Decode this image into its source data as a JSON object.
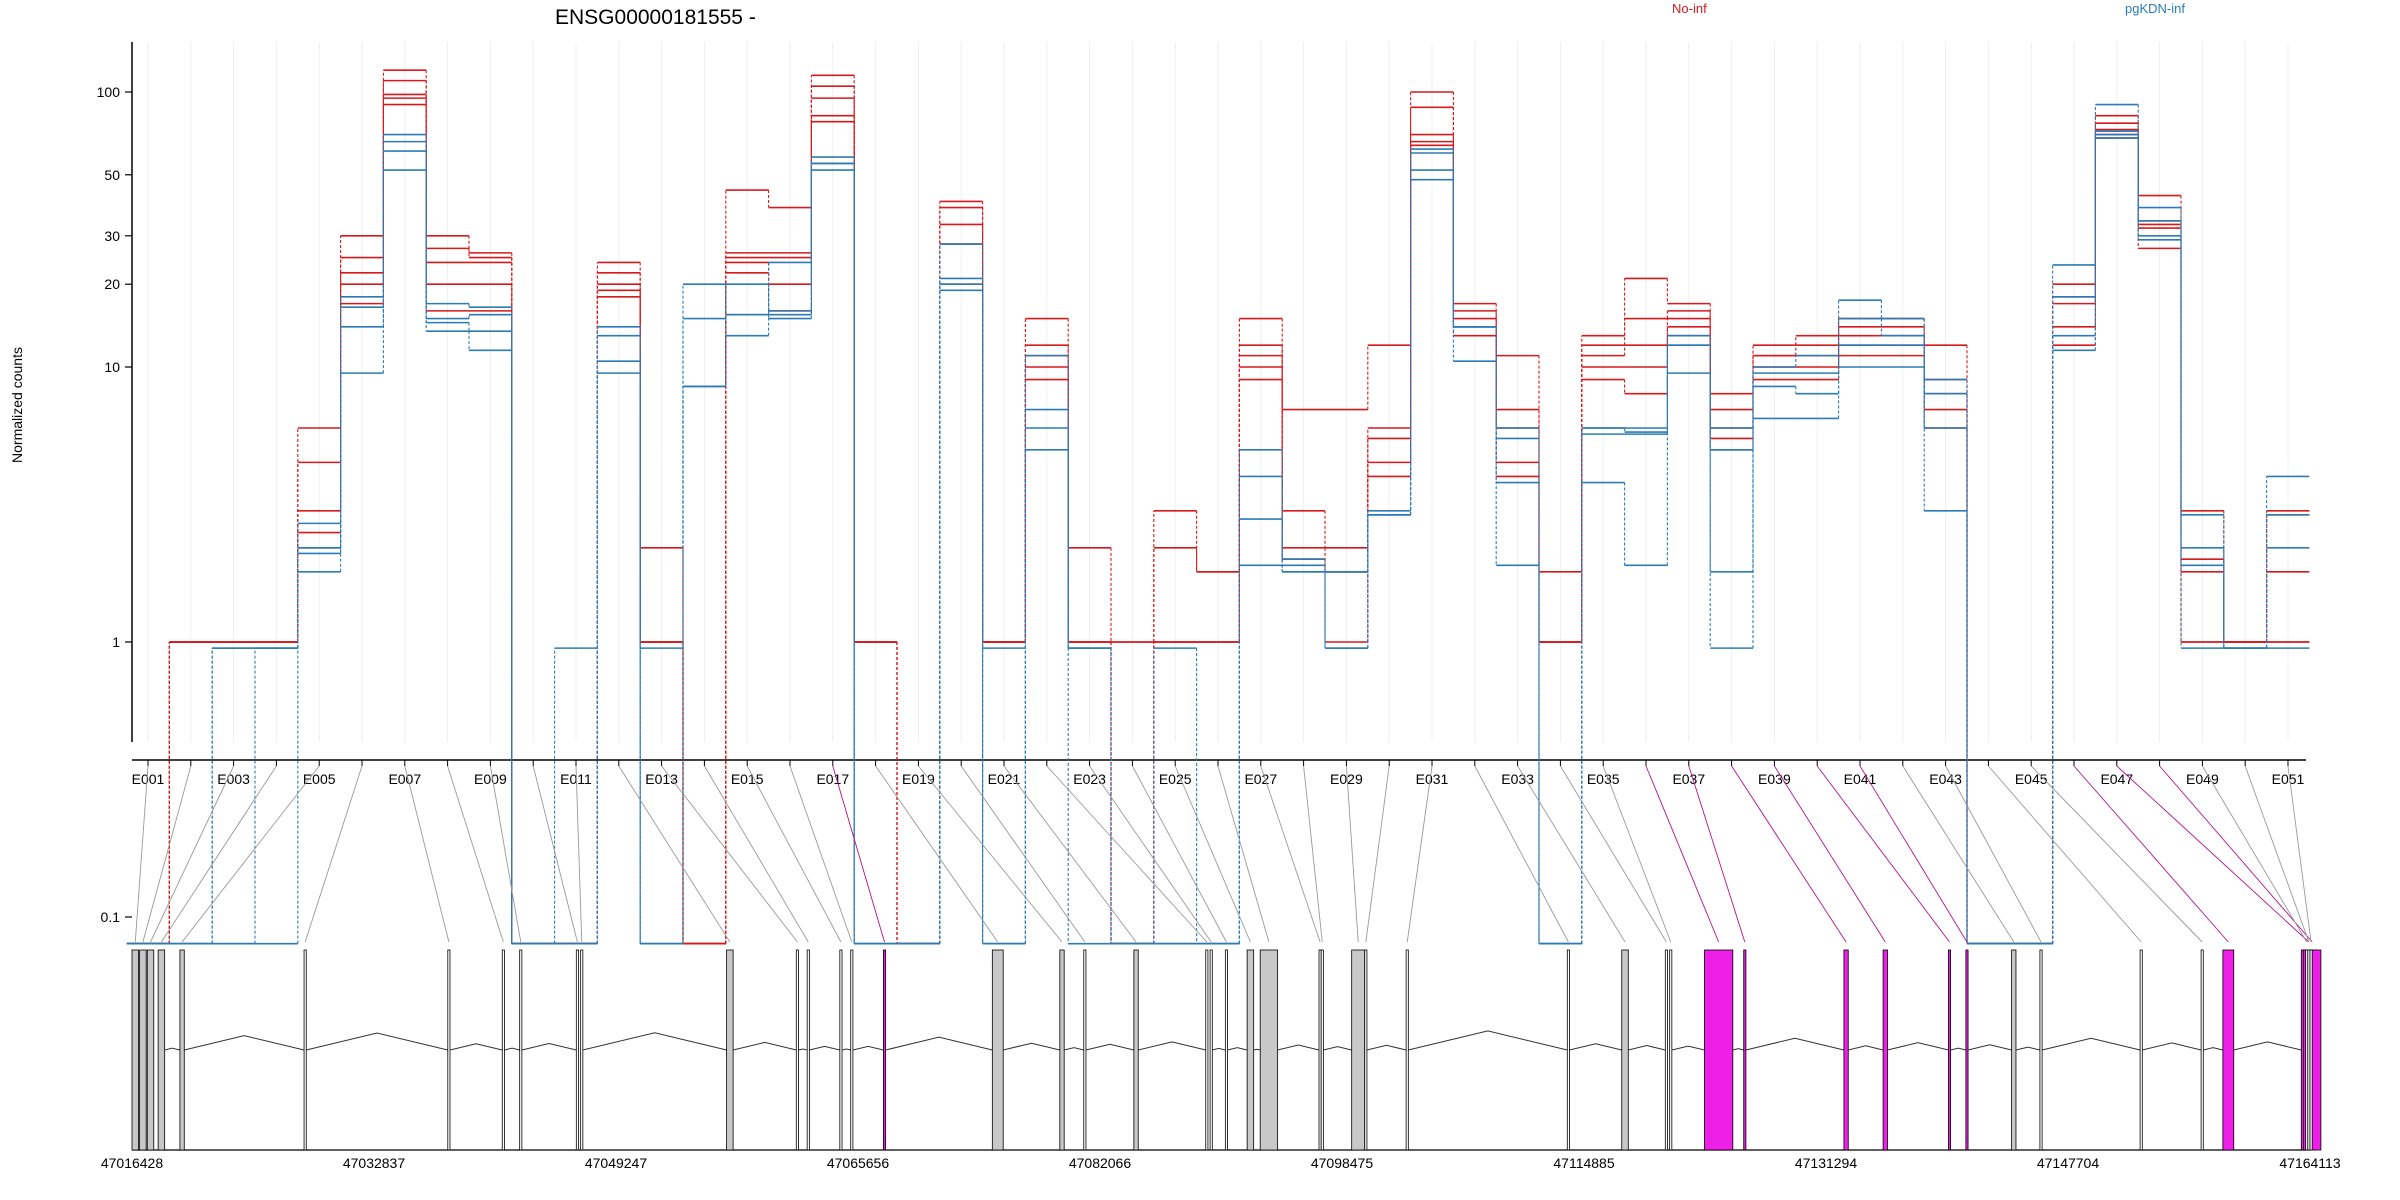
{
  "chart_data": {
    "type": "line",
    "title": "ENSG00000181555 -",
    "ylabel": "Normalized counts",
    "xlabel": "",
    "y_scale": "log",
    "ylim": [
      0.075,
      140
    ],
    "y_ticks": [
      0.1,
      1,
      10,
      20,
      30,
      50,
      100
    ],
    "y_tick_labels": [
      "0.1",
      "1",
      "10",
      "20",
      "30",
      "50",
      "100"
    ],
    "grid": "vertical lines at each exon",
    "legend_placement": "top",
    "colors": {
      "No-inf": "#d7191c",
      "pgKDN-inf": "#2c7bb6",
      "highlight": "#ee1fe6",
      "neutral_exon": "#c8c8c8",
      "link": "#999999"
    },
    "groups": [
      "No-inf",
      "pgKDN-inf"
    ],
    "exons": [
      "E001",
      "E002",
      "E003",
      "E004",
      "E005",
      "E006",
      "E007",
      "E008",
      "E009",
      "E010",
      "E011",
      "E012",
      "E013",
      "E014",
      "E015",
      "E016",
      "E017",
      "E018",
      "E019",
      "E020",
      "E021",
      "E022",
      "E023",
      "E024",
      "E025",
      "E026",
      "E027",
      "E028",
      "E029",
      "E030",
      "E031",
      "E032",
      "E033",
      "E034",
      "E035",
      "E036",
      "E037",
      "E038",
      "E039",
      "E040",
      "E041",
      "E042",
      "E043",
      "E044",
      "E045",
      "E046",
      "E047",
      "E048",
      "E049",
      "E050",
      "E051"
    ],
    "x_tick_labels": [
      "E001",
      "E003",
      "E005",
      "E007",
      "E009",
      "E011",
      "E013",
      "E015",
      "E017",
      "E019",
      "E021",
      "E023",
      "E025",
      "E027",
      "E029",
      "E031",
      "E033",
      "E035",
      "E037",
      "E039",
      "E041",
      "E043",
      "E045",
      "E047",
      "E049",
      "E051"
    ],
    "significant_exons": [
      "E017",
      "E036",
      "E037",
      "E038",
      "E039",
      "E040",
      "E041",
      "E046",
      "E047",
      "E048"
    ],
    "series": [
      {
        "name": "No-inf",
        "group": "No-inf",
        "values": [
          0.08,
          1,
          1,
          1,
          6,
          30,
          120,
          30,
          26,
          0.08,
          0.08,
          24,
          2.2,
          0.08,
          44,
          38,
          115,
          1,
          0.08,
          40,
          1,
          15,
          2.2,
          1,
          3,
          1.8,
          15,
          7,
          7,
          12,
          100,
          17,
          11,
          1.8,
          13,
          21,
          17,
          8,
          12,
          13,
          15,
          15,
          12,
          0.08,
          0.08,
          20,
          82,
          42,
          3,
          1,
          3
        ]
      },
      {
        "name": "No-inf",
        "group": "No-inf",
        "values": [
          0.08,
          1,
          1,
          1,
          4.5,
          25,
          110,
          27,
          25,
          0.08,
          0.08,
          22,
          1,
          0.08,
          26,
          26,
          105,
          1,
          0.08,
          38,
          1,
          12,
          1,
          1,
          2.2,
          1.8,
          12,
          3,
          2.2,
          6,
          88,
          16,
          7,
          1,
          12,
          15,
          16,
          7,
          11,
          12,
          14,
          14,
          9,
          0.08,
          0.08,
          18,
          77,
          34,
          2,
          1,
          2.9
        ]
      },
      {
        "name": "No-inf",
        "group": "No-inf",
        "values": [
          0.08,
          1,
          1,
          1,
          3,
          22,
          98,
          24,
          24,
          0.08,
          0.08,
          20,
          1,
          0.08,
          25,
          25,
          95,
          1,
          0.08,
          33,
          1,
          11,
          1,
          0.08,
          1,
          1,
          11,
          2.2,
          1.8,
          5.5,
          70,
          15,
          6,
          1,
          11,
          12,
          15,
          6,
          11,
          11,
          13,
          13,
          8,
          0.08,
          0.08,
          17,
          73,
          33,
          1.8,
          1,
          1.8
        ]
      },
      {
        "name": "No-inf",
        "group": "No-inf",
        "values": [
          0.08,
          1,
          1,
          1,
          2.5,
          20,
          95,
          20,
          20,
          0.08,
          0.08,
          19,
          1,
          0.08,
          24,
          20,
          82,
          1,
          0.08,
          28,
          1,
          10,
          1,
          0.08,
          1,
          1,
          10,
          2,
          1.8,
          4.5,
          66,
          14,
          4.5,
          1,
          10,
          10,
          14,
          5.5,
          10,
          10,
          12,
          12,
          7,
          0.08,
          0.08,
          14,
          70,
          32,
          1,
          1,
          1
        ]
      },
      {
        "name": "No-inf",
        "group": "No-inf",
        "values": [
          0.08,
          1,
          1,
          1,
          2.2,
          17,
          90,
          16,
          16,
          0.08,
          0.08,
          18,
          1,
          0.08,
          22,
          16,
          78,
          1,
          0.08,
          20,
          1,
          9,
          1,
          0.08,
          1,
          1,
          9,
          2,
          1,
          4,
          64,
          13,
          4,
          1,
          9,
          8,
          13,
          5,
          9,
          9,
          11,
          11,
          6,
          0.08,
          0.08,
          12,
          68,
          27,
          1,
          1,
          1
        ]
      },
      {
        "name": "pgKDN-inf",
        "group": "pgKDN-inf",
        "values": [
          0.08,
          0.08,
          0.95,
          0.95,
          1.8,
          9.5,
          52,
          13.5,
          11.5,
          0.08,
          0.95,
          14,
          0.95,
          8.5,
          13,
          24,
          52,
          0.08,
          0.08,
          28,
          0.95,
          5,
          0.95,
          0.08,
          0.95,
          0.08,
          1.9,
          1.9,
          1.8,
          2.9,
          48,
          10.5,
          1.9,
          0.08,
          3.8,
          1.9,
          9.5,
          0.95,
          6.5,
          6.5,
          17.5,
          15,
          3,
          0.08,
          0.08,
          23.5,
          90,
          38,
          0.95,
          0.95,
          4
        ]
      },
      {
        "name": "pgKDN-inf",
        "group": "pgKDN-inf",
        "values": [
          0.08,
          0.08,
          0.95,
          0.95,
          2.1,
          14,
          61,
          14.5,
          13.5,
          0.08,
          0.08,
          10.5,
          0.08,
          15,
          15.5,
          16,
          55,
          0.08,
          0.08,
          20,
          0.08,
          6,
          0.08,
          0.08,
          0.08,
          0.08,
          2.8,
          1.8,
          1.8,
          2.9,
          52,
          14,
          3.8,
          0.08,
          5.7,
          5.7,
          12,
          1.8,
          8.5,
          8,
          15,
          13,
          6,
          0.08,
          0.08,
          18,
          72,
          34,
          1.9,
          0.95,
          2.9
        ]
      },
      {
        "name": "pgKDN-inf",
        "group": "pgKDN-inf",
        "values": [
          0.08,
          0.08,
          0.08,
          0.95,
          2.2,
          16.5,
          66,
          15,
          15.5,
          0.08,
          0.08,
          9.5,
          0.08,
          20,
          15.5,
          15.5,
          55,
          0.08,
          0.08,
          21,
          0.08,
          7,
          0.95,
          0.08,
          0.08,
          0.08,
          5,
          1.8,
          0.95,
          2.9,
          60,
          14,
          5.5,
          0.08,
          6,
          5.8,
          12,
          5,
          9.5,
          9.5,
          12,
          12,
          8,
          0.08,
          0.08,
          13,
          68,
          30,
          2.9,
          0.95,
          2.2
        ]
      },
      {
        "name": "pgKDN-inf",
        "group": "pgKDN-inf",
        "values": [
          0.08,
          0.08,
          0.08,
          0.08,
          2.7,
          18,
          70,
          17,
          16.5,
          0.08,
          0.08,
          13,
          0.08,
          8.5,
          20,
          15,
          58,
          0.08,
          0.08,
          19,
          0.08,
          11,
          0.95,
          0.08,
          0.08,
          0.08,
          4,
          2,
          0.95,
          3,
          62,
          14,
          6,
          0.08,
          6,
          6,
          13,
          6,
          10,
          11,
          10,
          10,
          9,
          0.08,
          0.08,
          11.5,
          70,
          29,
          2.2,
          0.95,
          0.95
        ]
      }
    ]
  },
  "gene_model": {
    "coordinate_labels": [
      "47016428",
      "47032837",
      "47049247",
      "47065656",
      "47082066",
      "47098475",
      "47114885",
      "47131294",
      "47147704",
      "47164113"
    ]
  }
}
